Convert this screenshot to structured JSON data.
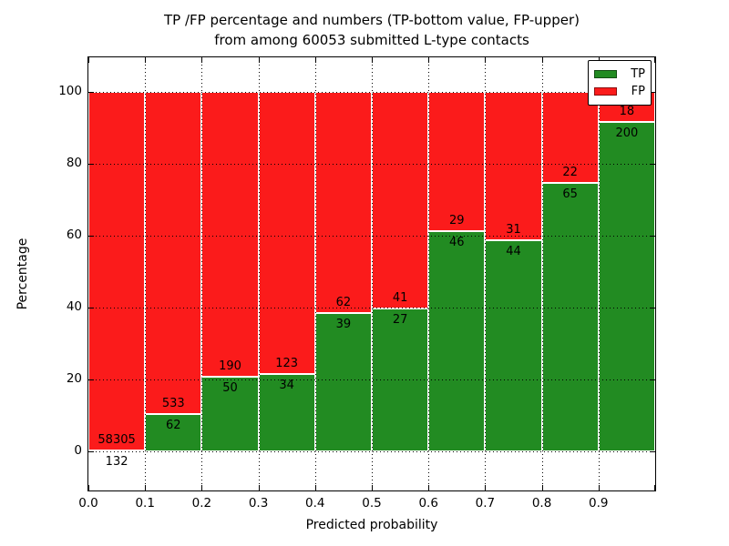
{
  "figure": {
    "title_line1": "TP /FP percentage and numbers (TP-bottom value, FP-upper)",
    "title_line2": "from among 60053 submitted L-type contacts",
    "total_contacts": "60053"
  },
  "chart_data": {
    "type": "bar",
    "stacked": true,
    "normalized_to_100_percent": true,
    "title": "TP /FP percentage and numbers (TP-bottom value, FP-upper)\nfrom among 60053 submitted L-type contacts",
    "xlabel": "Predicted probability",
    "ylabel": "Percentage",
    "bin_edges": [
      0.0,
      0.1,
      0.2,
      0.3,
      0.4,
      0.5,
      0.6,
      0.7,
      0.8,
      0.9,
      1.0
    ],
    "categories": [
      "0.0-0.1",
      "0.1-0.2",
      "0.2-0.3",
      "0.3-0.4",
      "0.4-0.5",
      "0.5-0.6",
      "0.6-0.7",
      "0.7-0.8",
      "0.8-0.9",
      "0.9-1.0"
    ],
    "series": [
      {
        "name": "TP",
        "color": "#228b22",
        "counts": [
          132,
          62,
          50,
          34,
          39,
          27,
          46,
          44,
          65,
          200
        ]
      },
      {
        "name": "FP",
        "color": "#fb1b1b",
        "counts": [
          58305,
          533,
          190,
          123,
          62,
          41,
          29,
          31,
          22,
          18
        ]
      }
    ],
    "tp_percent_per_bin": [
      0.23,
      10.42,
      20.83,
      21.66,
      38.61,
      39.71,
      61.33,
      58.67,
      74.71,
      91.74
    ],
    "xticks": [
      "0.0",
      "0.1",
      "0.2",
      "0.3",
      "0.4",
      "0.5",
      "0.6",
      "0.7",
      "0.8",
      "0.9"
    ],
    "yticks": [
      0,
      20,
      40,
      60,
      80,
      100
    ],
    "xlim": [
      0.0,
      1.0
    ],
    "ylim": [
      -10.8,
      109.6
    ],
    "grid": "dotted",
    "bar_edge_color": "#ffffff",
    "legend_position": "upper right"
  },
  "legend": {
    "items": [
      {
        "label": "TP",
        "color": "#228b22"
      },
      {
        "label": "FP",
        "color": "#fb1b1b"
      }
    ]
  }
}
